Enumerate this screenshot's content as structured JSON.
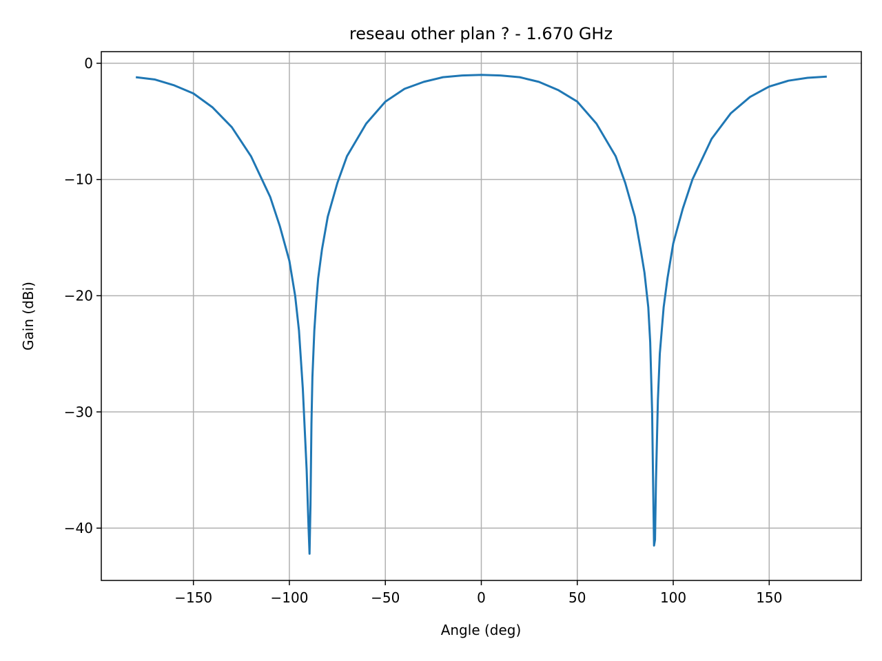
{
  "chart_data": {
    "type": "line",
    "title": "reseau other plan ? - 1.670 GHz",
    "xlabel": "Angle (deg)",
    "ylabel": "Gain (dBi)",
    "xlim": [
      -198,
      198
    ],
    "ylim": [
      -44.5,
      1.0
    ],
    "xticks": [
      -150,
      -100,
      -50,
      0,
      50,
      100,
      150
    ],
    "xtick_labels": [
      "−150",
      "−100",
      "−50",
      "0",
      "50",
      "100",
      "150"
    ],
    "yticks": [
      0,
      -10,
      -20,
      -30,
      -40
    ],
    "ytick_labels": [
      "0",
      "−10",
      "−20",
      "−30",
      "−40"
    ],
    "grid": true,
    "line_color": "#1f77b4",
    "grid_color": "#b0b0b0",
    "series": [
      {
        "x": [
          -180,
          -170,
          -160,
          -150,
          -140,
          -130,
          -120,
          -110,
          -105,
          -100,
          -97,
          -95,
          -93,
          -91,
          -90,
          -89.5,
          -89,
          -88.5,
          -88,
          -87,
          -86,
          -85,
          -83,
          -80,
          -75,
          -70,
          -60,
          -50,
          -40,
          -30,
          -20,
          -10,
          0,
          10,
          20,
          30,
          40,
          50,
          60,
          70,
          75,
          80,
          83,
          85,
          87,
          88,
          89,
          89.5,
          90,
          90.5,
          91,
          92,
          93,
          95,
          97,
          100,
          105,
          110,
          120,
          130,
          140,
          150,
          160,
          170,
          180
        ],
        "y": [
          -1.2,
          -1.4,
          -1.9,
          -2.6,
          -3.8,
          -5.5,
          -8.0,
          -11.5,
          -14.0,
          -17.0,
          -20.0,
          -23.0,
          -28.0,
          -35.0,
          -40.0,
          -42.2,
          -38.0,
          -31.0,
          -27.0,
          -23.0,
          -20.5,
          -18.5,
          -16.0,
          -13.2,
          -10.3,
          -8.0,
          -5.2,
          -3.3,
          -2.2,
          -1.6,
          -1.2,
          -1.05,
          -1.0,
          -1.05,
          -1.2,
          -1.6,
          -2.3,
          -3.3,
          -5.2,
          -8.0,
          -10.3,
          -13.2,
          -16.0,
          -18.0,
          -21.0,
          -24.0,
          -30.0,
          -36.0,
          -41.5,
          -41.0,
          -36.0,
          -29.0,
          -25.0,
          -21.0,
          -18.5,
          -15.5,
          -12.5,
          -10.0,
          -6.5,
          -4.3,
          -2.9,
          -2.0,
          -1.5,
          -1.25,
          -1.15
        ]
      }
    ]
  }
}
